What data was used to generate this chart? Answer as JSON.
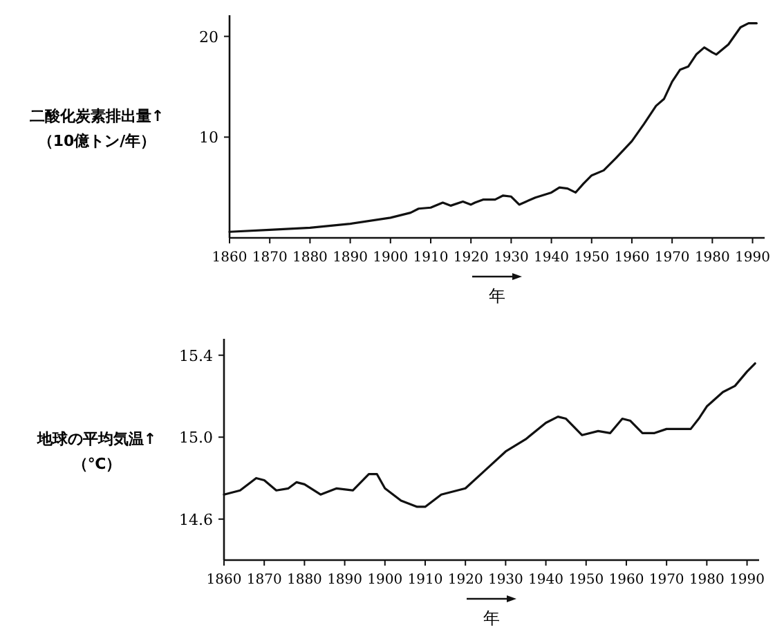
{
  "chart_data": [
    {
      "type": "line",
      "ylabel": "二酸化炭素排出量↑\n（10億トン/年）",
      "xlabel": "年",
      "color": "#111111",
      "x": [
        1860,
        1870,
        1880,
        1890,
        1900,
        1905,
        1907,
        1910,
        1913,
        1915,
        1918,
        1920,
        1921,
        1923,
        1926,
        1928,
        1930,
        1932,
        1936,
        1940,
        1942,
        1944,
        1946,
        1948,
        1950,
        1953,
        1956,
        1960,
        1963,
        1966,
        1968,
        1970,
        1972,
        1974,
        1976,
        1978,
        1980,
        1981,
        1984,
        1987,
        1989,
        1991
      ],
      "values": [
        0.6,
        0.8,
        1.0,
        1.4,
        2.0,
        2.5,
        2.9,
        3.0,
        3.5,
        3.2,
        3.6,
        3.3,
        3.5,
        3.8,
        3.8,
        4.2,
        4.1,
        3.3,
        4.0,
        4.5,
        5.0,
        4.9,
        4.5,
        5.4,
        6.2,
        6.7,
        7.9,
        9.6,
        11.3,
        13.1,
        13.8,
        15.5,
        16.7,
        17.0,
        18.2,
        18.9,
        18.4,
        18.2,
        19.2,
        20.9,
        21.3,
        21.3
      ],
      "xlim": [
        1860,
        1993
      ],
      "ylim": [
        0,
        22.1
      ],
      "xticks": [
        1860,
        1870,
        1880,
        1890,
        1900,
        1910,
        1920,
        1930,
        1940,
        1950,
        1960,
        1970,
        1980,
        1990
      ],
      "yticks": [
        10,
        20
      ]
    },
    {
      "type": "line",
      "ylabel": "地球の平均気温↑\n（℃）",
      "xlabel": "年",
      "color": "#111111",
      "x": [
        1860,
        1864,
        1868,
        1870,
        1873,
        1876,
        1878,
        1880,
        1884,
        1888,
        1892,
        1896,
        1898,
        1900,
        1904,
        1908,
        1910,
        1914,
        1918,
        1920,
        1925,
        1930,
        1935,
        1940,
        1943,
        1945,
        1949,
        1953,
        1956,
        1959,
        1961,
        1964,
        1967,
        1970,
        1973,
        1976,
        1978,
        1980,
        1984,
        1987,
        1990,
        1992
      ],
      "values": [
        14.72,
        14.74,
        14.8,
        14.79,
        14.74,
        14.75,
        14.78,
        14.77,
        14.72,
        14.75,
        14.74,
        14.82,
        14.82,
        14.75,
        14.69,
        14.66,
        14.66,
        14.72,
        14.74,
        14.75,
        14.84,
        14.93,
        14.99,
        15.07,
        15.1,
        15.09,
        15.01,
        15.03,
        15.02,
        15.09,
        15.08,
        15.02,
        15.02,
        15.04,
        15.04,
        15.04,
        15.09,
        15.15,
        15.22,
        15.25,
        15.32,
        15.36
      ],
      "xlim": [
        1860,
        1993
      ],
      "ylim": [
        14.4,
        15.48
      ],
      "xticks": [
        1860,
        1870,
        1880,
        1890,
        1900,
        1910,
        1920,
        1930,
        1940,
        1950,
        1960,
        1970,
        1980,
        1990
      ],
      "yticks": [
        14.6,
        {
          "value": 15,
          "label": "15.0"
        },
        15.4
      ]
    }
  ]
}
